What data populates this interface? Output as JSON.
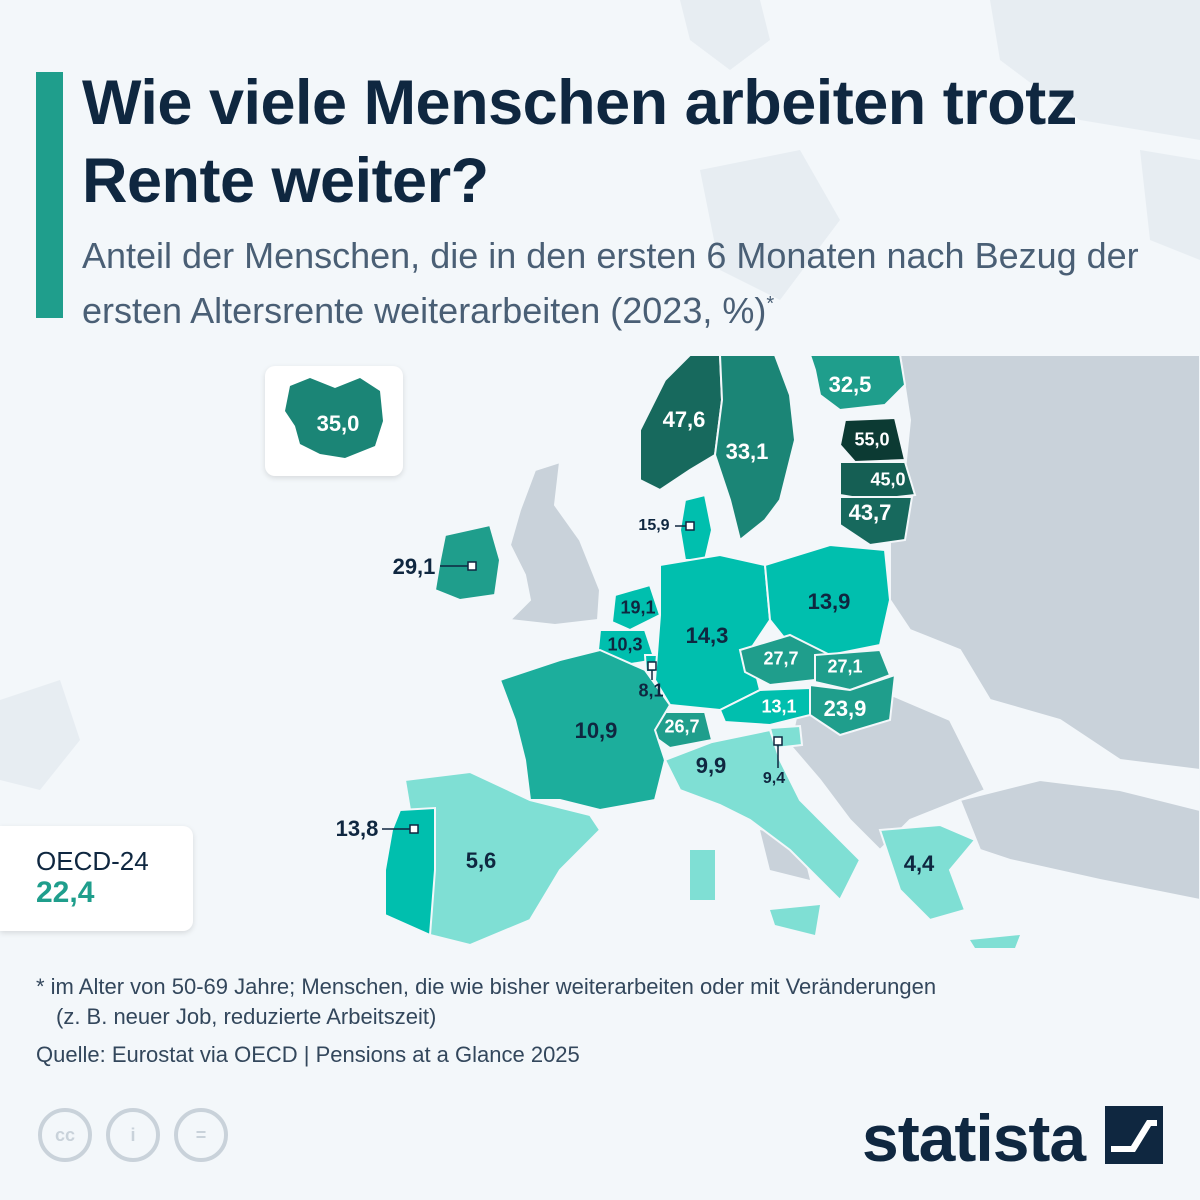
{
  "header": {
    "title": "Wie viele Menschen arbeiten trotz Rente weiter?",
    "subtitle": "Anteil der Menschen, die in den ersten 6 Monaten nach Bezug der ersten Altersrente weiterarbeiten (2023, %)",
    "subtitle_marker": "*"
  },
  "map_data": {
    "unit": "%",
    "year": "2023",
    "countries": [
      {
        "label": "47,6",
        "value": 47.6,
        "color": "#17695d"
      },
      {
        "label": "33,1",
        "value": 33.1,
        "color": "#1b8576"
      },
      {
        "label": "32,5",
        "value": 32.5,
        "color": "#1f9e8c"
      },
      {
        "label": "55,0",
        "value": 55.0,
        "color": "#0c3a33"
      },
      {
        "label": "45,0",
        "value": 45.0,
        "color": "#155f54"
      },
      {
        "label": "43,7",
        "value": 43.7,
        "color": "#17695d"
      },
      {
        "label": "35,0",
        "value": 35.0,
        "color": "#1b8576"
      },
      {
        "label": "15,9",
        "value": 15.9,
        "color": "#00bfae"
      },
      {
        "label": "29,1",
        "value": 29.1,
        "color": "#1f9e8c"
      },
      {
        "label": "19,1",
        "value": 19.1,
        "color": "#00bfae"
      },
      {
        "label": "10,3",
        "value": 10.3,
        "color": "#00bfae"
      },
      {
        "label": "8,1",
        "value": 8.1,
        "color": "#00bfae"
      },
      {
        "label": "14,3",
        "value": 14.3,
        "color": "#00bfae"
      },
      {
        "label": "13,9",
        "value": 13.9,
        "color": "#00bfae"
      },
      {
        "label": "27,7",
        "value": 27.7,
        "color": "#1f9e8c"
      },
      {
        "label": "27,1",
        "value": 27.1,
        "color": "#1f9e8c"
      },
      {
        "label": "23,9",
        "value": 23.9,
        "color": "#1f9e8c"
      },
      {
        "label": "13,1",
        "value": 13.1,
        "color": "#00bfae"
      },
      {
        "label": "26,7",
        "value": 26.7,
        "color": "#1f9e8c"
      },
      {
        "label": "10,9",
        "value": 10.9,
        "color": "#1cae9c"
      },
      {
        "label": "9,9",
        "value": 9.9,
        "color": "#7fdfd4"
      },
      {
        "label": "9,4",
        "value": 9.4,
        "color": "#7fdfd4"
      },
      {
        "label": "13,8",
        "value": 13.8,
        "color": "#00bfae"
      },
      {
        "label": "5,6",
        "value": 5.6,
        "color": "#7fdfd4"
      },
      {
        "label": "4,4",
        "value": 4.4,
        "color": "#7fdfd4"
      }
    ]
  },
  "oecd": {
    "name": "OECD-24",
    "value": "22,4"
  },
  "footnote": {
    "line1": "* im Alter von 50-69 Jahre; Menschen, die wie bisher weiterarbeiten oder mit Veränderungen",
    "line2": "(z. B. neuer Job, reduzierte Arbeitszeit)"
  },
  "source": "Quelle: Eurostat via OECD | Pensions at a Glance 2025",
  "license_icons": [
    "cc-icon",
    "attribution-icon",
    "no-derivatives-icon"
  ],
  "license_glyphs": [
    "cc",
    "i",
    "="
  ],
  "brand": {
    "name": "statista"
  },
  "colors": {
    "accent": "#1f9e8c",
    "non_data_land": "#c9d2da",
    "background": "#f3f7fa",
    "title": "#0f2740"
  }
}
